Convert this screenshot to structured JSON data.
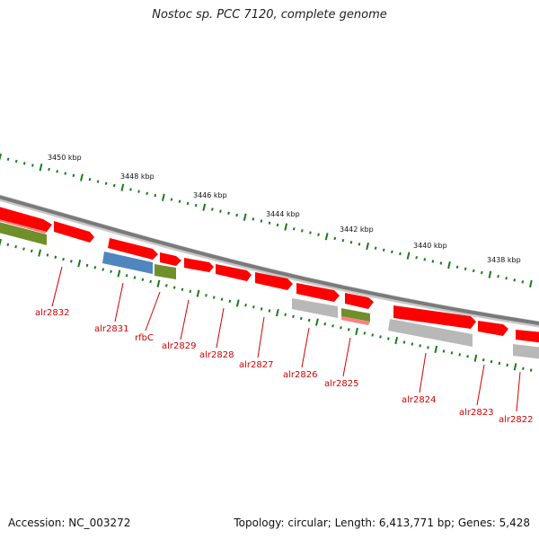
{
  "header": {
    "title": "Nostoc sp. PCC 7120, complete genome"
  },
  "footer": {
    "accession": "Accession: NC_003272",
    "summary": "Topology: circular; Length: 6,413,771 bp; Genes: 5,428"
  },
  "scale": {
    "labels": [
      "3450 kbp",
      "3448 kbp",
      "3446 kbp",
      "3444 kbp",
      "3442 kbp",
      "3440 kbp",
      "3438 kbp"
    ]
  },
  "genes": {
    "labels": [
      "alr2832",
      "alr2831",
      "rfbC",
      "alr2829",
      "alr2828",
      "alr2827",
      "alr2826",
      "alr2825",
      "alr2824",
      "alr2823",
      "alr2822"
    ]
  },
  "colors": {
    "cds": "#ff0000",
    "cds_shadow": "#c80000",
    "blue": "#4f86bd",
    "green": "#6f8f2a",
    "grey": "#b8b8b8",
    "backbone": "#7a7a7a",
    "tick": "#1a7a1a",
    "label": "#d40000"
  }
}
